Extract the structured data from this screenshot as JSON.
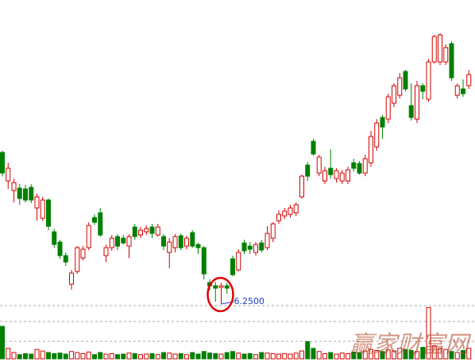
{
  "chart_data": {
    "type": "candlestick",
    "ylim": [
      5.9,
      10.0
    ],
    "up_color": "#d40000",
    "down_color": "#008000",
    "open": [
      8.16,
      7.8,
      7.68,
      7.71,
      7.7,
      7.72,
      7.46,
      7.33,
      7.56,
      7.16,
      7.03,
      6.86,
      6.5,
      6.66,
      6.83,
      6.96,
      7.34,
      7.4,
      6.86,
      6.96,
      7.1,
      7.08,
      6.98,
      7.22,
      7.12,
      7.16,
      7.22,
      7.12,
      7.1,
      6.9,
      6.96,
      7.11,
      6.98,
      7.15,
      7.0,
      6.96,
      6.52,
      6.48,
      6.46,
      6.48,
      6.82,
      6.68,
      7.02,
      6.98,
      6.9,
      7.02,
      6.96,
      7.08,
      7.3,
      7.36,
      7.38,
      7.4,
      7.6,
      8.0,
      8.3,
      7.9,
      7.8,
      7.96,
      7.83,
      7.8,
      7.8,
      8.03,
      8.02,
      7.9,
      8.03,
      8.23,
      8.6,
      8.58,
      8.78,
      8.88,
      9.18,
      8.75,
      8.58,
      9.0,
      8.83,
      9.3,
      9.3,
      9.3,
      9.53,
      8.88,
      8.96,
      9.0
    ],
    "close": [
      7.9,
      7.96,
      7.78,
      7.58,
      7.56,
      7.56,
      7.6,
      7.56,
      7.23,
      7.0,
      6.86,
      6.78,
      6.64,
      6.96,
      6.94,
      7.24,
      7.28,
      7.12,
      6.96,
      7.08,
      6.98,
      7.02,
      7.1,
      7.1,
      7.18,
      7.2,
      7.14,
      7.22,
      6.98,
      7.03,
      7.1,
      6.96,
      7.08,
      6.98,
      6.96,
      6.63,
      6.48,
      6.45,
      6.48,
      6.45,
      6.62,
      6.9,
      6.92,
      6.94,
      7.0,
      6.93,
      7.14,
      7.26,
      7.38,
      7.42,
      7.46,
      7.5,
      7.86,
      7.86,
      8.14,
      8.1,
      7.93,
      7.88,
      7.93,
      7.9,
      7.94,
      7.96,
      7.9,
      8.08,
      8.36,
      8.53,
      8.48,
      8.86,
      9.0,
      9.1,
      8.96,
      8.6,
      9.0,
      8.93,
      9.3,
      9.62,
      9.64,
      9.48,
      9.1,
      9.0,
      8.9,
      9.14
    ],
    "high": [
      8.18,
      8.03,
      7.83,
      7.76,
      7.75,
      7.76,
      7.64,
      7.6,
      7.58,
      7.2,
      7.06,
      6.9,
      6.68,
      6.98,
      6.98,
      7.28,
      7.38,
      7.46,
      7.0,
      7.12,
      7.13,
      7.12,
      7.13,
      7.26,
      7.22,
      7.24,
      7.26,
      7.26,
      7.13,
      7.08,
      7.13,
      7.14,
      7.11,
      7.18,
      7.02,
      6.98,
      6.56,
      6.53,
      6.52,
      6.52,
      6.86,
      6.94,
      7.06,
      7.03,
      7.03,
      7.06,
      7.23,
      7.28,
      7.43,
      7.46,
      7.5,
      7.53,
      7.88,
      8.04,
      8.33,
      8.13,
      7.98,
      8.2,
      7.96,
      7.94,
      7.98,
      8.08,
      8.05,
      8.13,
      8.43,
      8.58,
      8.63,
      8.9,
      9.03,
      9.16,
      9.2,
      9.03,
      9.06,
      9.03,
      9.34,
      9.64,
      9.66,
      9.52,
      9.56,
      9.03,
      9.08,
      9.2
    ],
    "low": [
      7.86,
      7.7,
      7.53,
      7.5,
      7.53,
      7.52,
      7.3,
      7.3,
      7.18,
      6.96,
      6.82,
      6.73,
      6.43,
      6.63,
      6.8,
      6.93,
      7.25,
      7.1,
      6.78,
      6.92,
      6.93,
      7.0,
      6.83,
      7.06,
      7.08,
      7.12,
      7.08,
      7.1,
      6.93,
      6.7,
      6.9,
      6.93,
      6.94,
      6.96,
      6.88,
      6.56,
      6.42,
      6.28,
      6.25,
      6.38,
      6.6,
      6.66,
      6.88,
      6.88,
      6.86,
      6.9,
      6.93,
      7.03,
      7.26,
      7.32,
      7.34,
      7.36,
      7.58,
      7.8,
      8.12,
      7.86,
      7.76,
      7.83,
      7.78,
      7.76,
      7.76,
      7.92,
      7.88,
      7.86,
      7.98,
      8.18,
      8.33,
      8.53,
      8.73,
      8.84,
      8.93,
      8.56,
      8.53,
      8.83,
      8.8,
      9.28,
      9.26,
      9.26,
      9.06,
      8.84,
      8.86,
      8.96
    ],
    "volume_ylim": [
      0,
      100
    ],
    "volumes": [
      62,
      20,
      12,
      8,
      10,
      9,
      18,
      15,
      12,
      10,
      11,
      9,
      14,
      12,
      10,
      13,
      8,
      12,
      9,
      10,
      8,
      9,
      11,
      10,
      8,
      9,
      10,
      8,
      12,
      11,
      9,
      10,
      8,
      12,
      9,
      14,
      11,
      10,
      9,
      12,
      14,
      11,
      9,
      10,
      8,
      12,
      11,
      10,
      9,
      10,
      9,
      11,
      15,
      33,
      20,
      14,
      10,
      12,
      9,
      11,
      10,
      13,
      12,
      15,
      18,
      16,
      14,
      17,
      15,
      20,
      18,
      16,
      14,
      22,
      98,
      25,
      20,
      18,
      14,
      12,
      16,
      20
    ],
    "annotation": {
      "value": 6.25,
      "label": "6.2500",
      "index": 38,
      "color": "#1a3fd0"
    },
    "watermark": "赢家财富网"
  }
}
